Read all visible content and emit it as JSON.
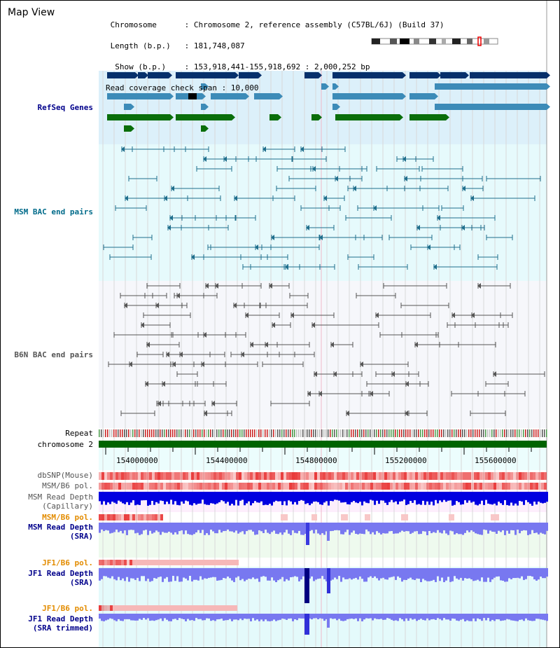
{
  "header": {
    "title": "Map View",
    "info_lines": [
      " Chromosome      : Chromosome 2, reference assembly (C57BL/6J) (Build 37)",
      " Length (b.p.)   : 181,748,087",
      "  Show (b.p.)    : 153,918,441-155,918,692 : 2,000,252 bp",
      "Read coverage check span : 10,000"
    ]
  },
  "tracks": {
    "refseq": "RefSeq Genes",
    "msm_bac": "MSM BAC end pairs",
    "b6n_bac": "B6N BAC end pairs",
    "repeat": "Repeat",
    "chromosome": "chromosome 2",
    "dbsnp": "dbSNP(Mouse)",
    "msm_b6_pol": "MSM/B6 pol.",
    "msm_depth_cap_1": "MSM Read Depth",
    "msm_depth_cap_2": "(Capillary)",
    "msm_b6_pol2": "MSM/B6 pol.",
    "msm_depth_sra_1": "MSM Read Depth",
    "msm_depth_sra_2": "(SRA)",
    "jf1_pol": "JF1/B6 pol.",
    "jf1_depth_1": "JF1 Read Depth",
    "jf1_depth_2": "(SRA)",
    "jf1_pol2": "JF1/B6 pol.",
    "jf1_trim_1": "JF1 Read Depth",
    "jf1_trim_2": "(SRA trimmed)"
  },
  "axis": {
    "ticks": [
      "154000000",
      "154400000",
      "154800000",
      "155200000",
      "155600000"
    ]
  },
  "colors": {
    "refseq_dark": "#06306b",
    "refseq_mid": "#3c8bb8",
    "refseq_green": "#0a6e0a",
    "msm_line": "#1f6e8c",
    "b6n_line": "#555555",
    "chrom_bar": "#006400",
    "depth_blue": "#0000e0",
    "depth_light": "#7878f0",
    "pol_red": "#e83030"
  }
}
